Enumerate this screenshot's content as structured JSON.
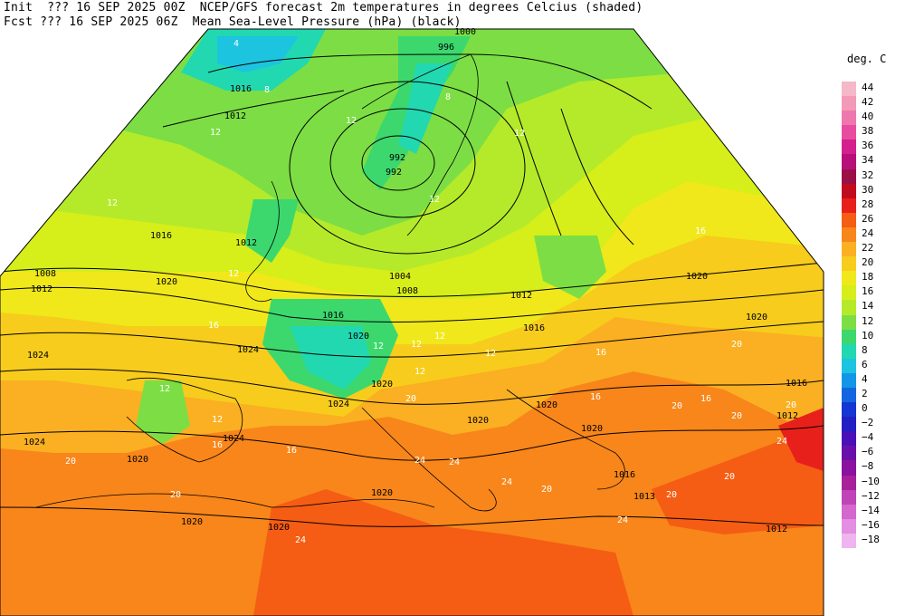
{
  "header": {
    "line1": "Init  ??? 16 SEP 2025 00Z  NCEP/GFS forecast 2m temperatures in degrees Celcius (shaded)",
    "line2": "Fcst ??? 16 SEP 2025 06Z  Mean Sea-Level Pressure (hPa) (black)"
  },
  "legend": {
    "title": "deg. C",
    "items": [
      {
        "value": "44",
        "color": "#f5b8c8"
      },
      {
        "value": "42",
        "color": "#f29ab8"
      },
      {
        "value": "40",
        "color": "#ee78ad"
      },
      {
        "value": "38",
        "color": "#e84ca0"
      },
      {
        "value": "36",
        "color": "#d4208e"
      },
      {
        "value": "34",
        "color": "#b8107a"
      },
      {
        "value": "32",
        "color": "#9a1046"
      },
      {
        "value": "30",
        "color": "#c00c1c"
      },
      {
        "value": "28",
        "color": "#e8201c"
      },
      {
        "value": "26",
        "color": "#f55c14"
      },
      {
        "value": "24",
        "color": "#f8861a"
      },
      {
        "value": "22",
        "color": "#fab022"
      },
      {
        "value": "20",
        "color": "#f7cc1c"
      },
      {
        "value": "18",
        "color": "#f0e81a"
      },
      {
        "value": "16",
        "color": "#d6ee1a"
      },
      {
        "value": "14",
        "color": "#b4ea2a"
      },
      {
        "value": "12",
        "color": "#7cde44"
      },
      {
        "value": "10",
        "color": "#3cd86e"
      },
      {
        "value": "8",
        "color": "#22d8b0"
      },
      {
        "value": "6",
        "color": "#1cc4e0"
      },
      {
        "value": "4",
        "color": "#1496e8"
      },
      {
        "value": "2",
        "color": "#1466e0"
      },
      {
        "value": "0",
        "color": "#1436d2"
      },
      {
        "value": "−2",
        "color": "#2020c4"
      },
      {
        "value": "−4",
        "color": "#4a10b8"
      },
      {
        "value": "−6",
        "color": "#6a10aa"
      },
      {
        "value": "−8",
        "color": "#8a129e"
      },
      {
        "value": "−10",
        "color": "#a8209a"
      },
      {
        "value": "−12",
        "color": "#c044b8"
      },
      {
        "value": "−14",
        "color": "#d468cc"
      },
      {
        "value": "−16",
        "color": "#e38ee0"
      },
      {
        "value": "−18",
        "color": "#f0b4ee"
      }
    ]
  },
  "map": {
    "pressure_labels": [
      "1000",
      "996",
      "992",
      "992",
      "1016",
      "1012",
      "1016",
      "1012",
      "1008",
      "1012",
      "1020",
      "1004",
      "1008",
      "1012",
      "1016",
      "1016",
      "1020",
      "1024",
      "1024",
      "1020",
      "1024",
      "1024",
      "1020",
      "1020",
      "1020",
      "1020",
      "1020",
      "1020",
      "1024",
      "1020",
      "1020",
      "1016",
      "1012",
      "1016",
      "1013",
      "1012",
      "1020"
    ],
    "temp_labels": [
      "4",
      "8",
      "12",
      "12",
      "8",
      "12",
      "12",
      "12",
      "16",
      "12",
      "16",
      "12",
      "12",
      "12",
      "12",
      "16",
      "12",
      "16",
      "12",
      "16",
      "20",
      "12",
      "16",
      "20",
      "20",
      "24",
      "24",
      "20",
      "24",
      "20",
      "24",
      "20",
      "16",
      "20",
      "20",
      "24",
      "20",
      "24",
      "20"
    ]
  }
}
